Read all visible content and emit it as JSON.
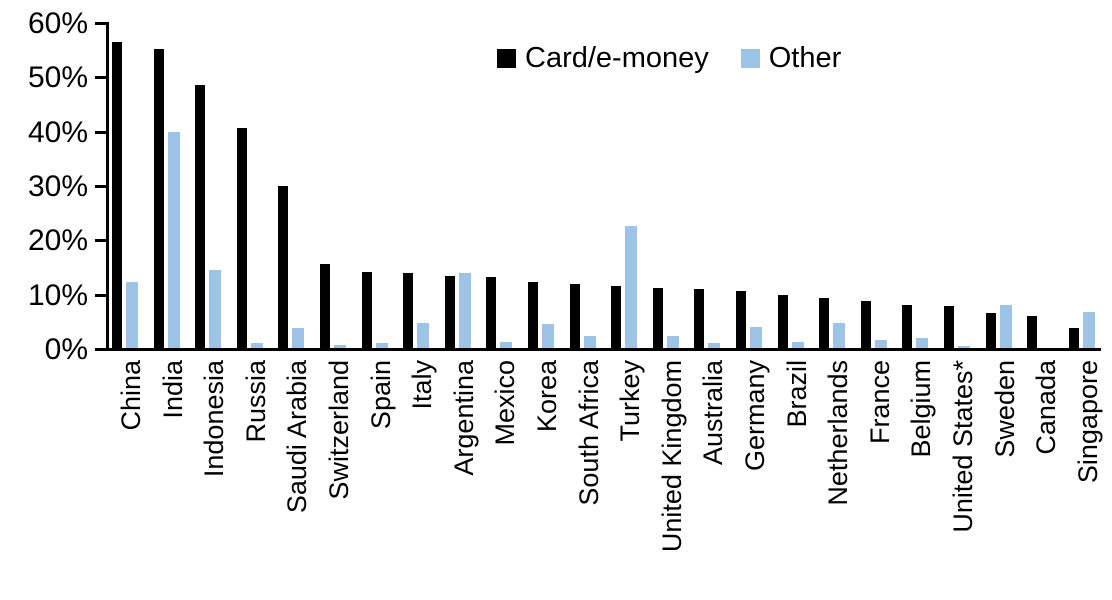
{
  "chart_data": {
    "type": "bar",
    "title": "",
    "unit": "%",
    "categories": [
      "China",
      "India",
      "Indonesia",
      "Russia",
      "Saudi Arabia",
      "Switzerland",
      "Spain",
      "Italy",
      "Argentina",
      "Mexico",
      "Korea",
      "South Africa",
      "Turkey",
      "United Kingdom",
      "Australia",
      "Germany",
      "Brazil",
      "Netherlands",
      "France",
      "Belgium",
      "United States*",
      "Sweden",
      "Canada",
      "Singapore"
    ],
    "series": [
      {
        "name": "Card/e-money",
        "key": "card-e-money",
        "color": "#000000",
        "values": [
          56.3,
          55.1,
          48.4,
          40.5,
          29.8,
          15.5,
          14.0,
          13.9,
          13.3,
          13.0,
          12.2,
          11.7,
          11.5,
          11.0,
          10.8,
          10.5,
          9.8,
          9.2,
          8.6,
          8.0,
          7.7,
          6.5,
          5.9,
          3.7
        ]
      },
      {
        "name": "Other",
        "key": "other",
        "color": "#9dc3e6",
        "values": [
          12.2,
          39.7,
          14.4,
          0.9,
          3.7,
          0.6,
          0.9,
          4.6,
          13.8,
          1.2,
          4.4,
          2.2,
          22.5,
          2.3,
          0.9,
          3.9,
          1.1,
          4.7,
          1.4,
          1.9,
          0.3,
          8.0,
          0.0,
          6.6
        ]
      }
    ],
    "y_axis": {
      "min": 0,
      "max": 60,
      "tick_labels": [
        "0%",
        "10%",
        "20%",
        "30%",
        "40%",
        "50%",
        "60%"
      ]
    },
    "x_axis": {
      "label_rotation_deg": 90
    },
    "legend_position": "top-center",
    "grid": "off"
  }
}
